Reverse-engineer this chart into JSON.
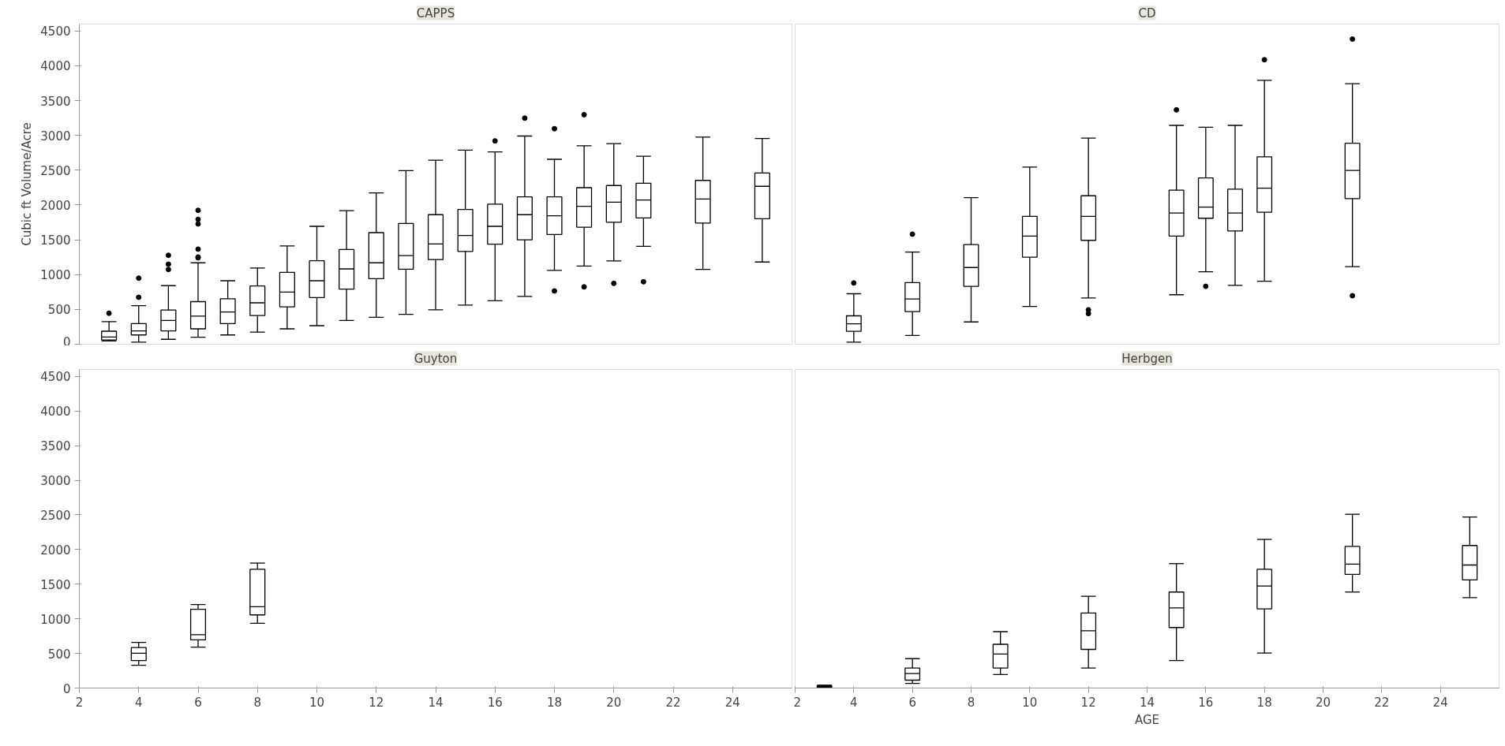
{
  "chart_data": [
    {
      "type": "box",
      "title": "CAPPS",
      "ylabel": "Cubic ft Volume/Acre",
      "tick_labels": "y",
      "xlim": [
        2,
        26
      ],
      "ylim": [
        0,
        4600
      ],
      "xticks": [
        2,
        4,
        6,
        8,
        10,
        12,
        14,
        16,
        18,
        20,
        22,
        24
      ],
      "yticks": [
        0,
        500,
        1000,
        1500,
        2000,
        2500,
        3000,
        3500,
        4000,
        4500
      ],
      "grid": false,
      "marker": "circle",
      "color": "#000000",
      "x": [
        3,
        4,
        5,
        6,
        7,
        8,
        9,
        10,
        11,
        12,
        13,
        14,
        15,
        16,
        17,
        18,
        19,
        20,
        21,
        23,
        25
      ],
      "boxes": [
        {
          "low": 46,
          "q1": 62,
          "median": 104,
          "q3": 187,
          "high": 325,
          "outliers": [
            445
          ]
        },
        {
          "low": 29,
          "q1": 133,
          "median": 192,
          "q3": 296,
          "high": 554,
          "outliers": [
            674,
            949
          ]
        },
        {
          "low": 71,
          "q1": 192,
          "median": 341,
          "q3": 491,
          "high": 841,
          "outliers": [
            1074,
            1149,
            1278
          ]
        },
        {
          "low": 100,
          "q1": 221,
          "median": 404,
          "q3": 612,
          "high": 1170,
          "outliers": [
            1241,
            1253,
            1366,
            1728,
            1794,
            1923
          ]
        },
        {
          "low": 133,
          "q1": 296,
          "median": 462,
          "q3": 654,
          "high": 912
        },
        {
          "low": 175,
          "q1": 412,
          "median": 595,
          "q3": 837,
          "high": 1095
        },
        {
          "low": 221,
          "q1": 537,
          "median": 749,
          "q3": 1032,
          "high": 1411
        },
        {
          "low": 266,
          "q1": 670,
          "median": 912,
          "q3": 1199,
          "high": 1694
        },
        {
          "low": 341,
          "q1": 791,
          "median": 1082,
          "q3": 1361,
          "high": 1919
        },
        {
          "low": 387,
          "q1": 941,
          "median": 1170,
          "q3": 1603,
          "high": 2173
        },
        {
          "low": 429,
          "q1": 1078,
          "median": 1274,
          "q3": 1736,
          "high": 2494
        },
        {
          "low": 495,
          "q1": 1216,
          "median": 1440,
          "q3": 1861,
          "high": 2644
        },
        {
          "low": 563,
          "q1": 1333,
          "median": 1562,
          "q3": 1935,
          "high": 2789
        },
        {
          "low": 625,
          "q1": 1437,
          "median": 1694,
          "q3": 2012,
          "high": 2762,
          "outliers": [
            2921
          ]
        },
        {
          "low": 688,
          "q1": 1500,
          "median": 1861,
          "q3": 2117,
          "high": 2991,
          "outliers": [
            3248
          ]
        },
        {
          "low": 1061,
          "q1": 1577,
          "median": 1845,
          "q3": 2117,
          "high": 2657,
          "outliers": [
            765,
            3096
          ]
        },
        {
          "low": 1123,
          "q1": 1682,
          "median": 1981,
          "q3": 2249,
          "high": 2852,
          "outliers": [
            824,
            3298
          ]
        },
        {
          "low": 1197,
          "q1": 1752,
          "median": 2040,
          "q3": 2280,
          "high": 2883,
          "outliers": [
            874
          ]
        },
        {
          "low": 1406,
          "q1": 1814,
          "median": 2071,
          "q3": 2312,
          "high": 2700,
          "outliers": [
            897
          ]
        },
        {
          "low": 1076,
          "q1": 1741,
          "median": 2086,
          "q3": 2354,
          "high": 2976
        },
        {
          "low": 1181,
          "q1": 1803,
          "median": 2269,
          "q3": 2459,
          "high": 2956
        }
      ]
    },
    {
      "type": "box",
      "title": "CD",
      "tick_labels": false,
      "xlim": [
        2,
        26
      ],
      "ylim": [
        0,
        4600
      ],
      "xticks": [
        2,
        4,
        6,
        8,
        10,
        12,
        14,
        16,
        18,
        20,
        22,
        24
      ],
      "yticks": [
        0,
        500,
        1000,
        1500,
        2000,
        2500,
        3000,
        3500,
        4000,
        4500
      ],
      "grid": false,
      "marker": "circle",
      "color": "#000000",
      "x": [
        4,
        6,
        8,
        10,
        12,
        15,
        16,
        17,
        18,
        21
      ],
      "boxes": [
        {
          "low": 30,
          "q1": 185,
          "median": 293,
          "q3": 408,
          "high": 725,
          "outliers": [
            880
          ]
        },
        {
          "low": 125,
          "q1": 468,
          "median": 650,
          "q3": 886,
          "high": 1324,
          "outliers": [
            1581
          ]
        },
        {
          "low": 320,
          "q1": 832,
          "median": 1102,
          "q3": 1432,
          "high": 2106
        },
        {
          "low": 543,
          "q1": 1250,
          "median": 1554,
          "q3": 1837,
          "high": 2544
        },
        {
          "low": 664,
          "q1": 1493,
          "median": 1837,
          "q3": 2133,
          "high": 2962,
          "outliers": [
            440,
            494
          ]
        },
        {
          "low": 711,
          "q1": 1554,
          "median": 1884,
          "q3": 2214,
          "high": 3144,
          "outliers": [
            3367
          ]
        },
        {
          "low": 1041,
          "q1": 1810,
          "median": 1971,
          "q3": 2389,
          "high": 3117,
          "outliers": [
            832
          ]
        },
        {
          "low": 845,
          "q1": 1628,
          "median": 1884,
          "q3": 2227,
          "high": 3144
        },
        {
          "low": 906,
          "q1": 1897,
          "median": 2241,
          "q3": 2692,
          "high": 3791,
          "outliers": [
            4087
          ]
        },
        {
          "low": 1115,
          "q1": 2092,
          "median": 2496,
          "q3": 2887,
          "high": 3744,
          "outliers": [
            697,
            4384
          ]
        }
      ]
    },
    {
      "type": "box",
      "title": "Guyton",
      "xlim": [
        2,
        26
      ],
      "ylim": [
        0,
        4600
      ],
      "xticks": [
        2,
        4,
        6,
        8,
        10,
        12,
        14,
        16,
        18,
        20,
        22,
        24
      ],
      "yticks": [
        0,
        500,
        1000,
        1500,
        2000,
        2500,
        3000,
        3500,
        4000,
        4500
      ],
      "grid": false,
      "marker": "circle",
      "color": "#000000",
      "x": [
        4,
        6,
        8
      ],
      "boxes": [
        {
          "low": 329,
          "q1": 397,
          "median": 502,
          "q3": 584,
          "high": 659
        },
        {
          "low": 591,
          "q1": 696,
          "median": 771,
          "q3": 1138,
          "high": 1205
        },
        {
          "low": 936,
          "q1": 1056,
          "median": 1175,
          "q3": 1715,
          "high": 1804
        }
      ]
    },
    {
      "type": "box",
      "title": "Herbgen",
      "xlabel": "AGE",
      "tick_labels": "x",
      "xlim": [
        2,
        26
      ],
      "ylim": [
        0,
        4600
      ],
      "xticks": [
        2,
        4,
        6,
        8,
        10,
        12,
        14,
        16,
        18,
        20,
        22,
        24
      ],
      "yticks": [
        0,
        500,
        1000,
        1500,
        2000,
        2500,
        3000,
        3500,
        4000,
        4500
      ],
      "grid": false,
      "marker": "circle",
      "color": "#000000",
      "x": [
        3,
        6,
        9,
        12,
        15,
        18,
        21,
        25
      ],
      "boxes": [
        {
          "low": 5,
          "q1": 10,
          "median": 20,
          "q3": 35,
          "high": 40
        },
        {
          "low": 67,
          "q1": 114,
          "median": 209,
          "q3": 289,
          "high": 424
        },
        {
          "low": 195,
          "q1": 289,
          "median": 491,
          "q3": 632,
          "high": 814
        },
        {
          "low": 289,
          "q1": 558,
          "median": 827,
          "q3": 1083,
          "high": 1325
        },
        {
          "low": 397,
          "q1": 874,
          "median": 1157,
          "q3": 1386,
          "high": 1796
        },
        {
          "low": 505,
          "q1": 1143,
          "median": 1473,
          "q3": 1715,
          "high": 2146
        },
        {
          "low": 1386,
          "q1": 1641,
          "median": 1789,
          "q3": 2045,
          "high": 2509
        },
        {
          "low": 1305,
          "q1": 1561,
          "median": 1776,
          "q3": 2058,
          "high": 2469
        }
      ]
    }
  ]
}
